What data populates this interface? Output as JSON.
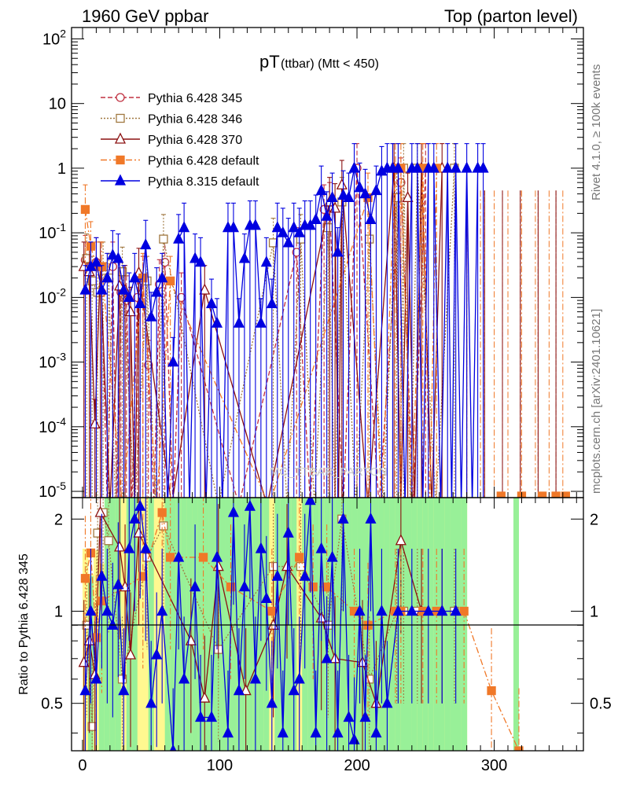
{
  "header": {
    "left": "1960 GeV ppbar",
    "right": "Top (parton level)"
  },
  "side": {
    "rivet": "Rivet 4.1.0, ≥ 100k events",
    "mcplots": "mcplots.cern.ch [arXiv:2401.10621]"
  },
  "watermark": "MC_TTBAR_PARTON",
  "colors": {
    "p345": "#c03040",
    "p346": "#a07840",
    "p370": "#8b1010",
    "pdef": "#f07828",
    "p8": "#0000e0",
    "band_green": "#98f098",
    "band_yellow": "#fff890"
  },
  "chart_data": {
    "type": "line",
    "title": "pT",
    "title_sub": "(ttbar) (Mtt < 450)",
    "xlim": [
      -8,
      365
    ],
    "ylim": [
      8e-06,
      150
    ],
    "yscale": "log",
    "x_ticks": [
      0,
      100,
      200,
      300
    ],
    "y_tick_labels": [
      "10^-5",
      "10^-4",
      "10^-3",
      "10^-2",
      "10^-1",
      "1",
      "10",
      "10^2"
    ],
    "ratio": {
      "ylabel": "Ratio to Pythia 6.428 345",
      "ylim": [
        0.35,
        2.35
      ],
      "y_ticks_left": [
        "0.5",
        "1",
        "2"
      ],
      "y_ticks_right": [
        "0.5",
        "1",
        "2"
      ]
    },
    "legend_position": "top-left",
    "series": [
      {
        "key": "p345",
        "name": "Pythia 6.428 345",
        "marker": "circle-open",
        "dash": "dashed",
        "points": [
          [
            2,
            0.038
          ],
          [
            6,
            0.03
          ],
          [
            10,
            0.035
          ],
          [
            14,
            0.012
          ],
          [
            22,
            0.03
          ],
          [
            28,
            0.012
          ],
          [
            32,
            0.009
          ],
          [
            40,
            0.01
          ],
          [
            44,
            0.018
          ],
          [
            48,
            0.0009
          ],
          [
            56,
            0.016
          ],
          [
            60,
            0.035
          ],
          [
            72,
            0.01
          ],
          [
            156,
            0.05
          ],
          [
            176,
            0.23
          ],
          [
            180,
            0.25
          ],
          [
            200,
            1.0
          ],
          [
            232,
            0.6
          ],
          [
            250,
            1.0
          ]
        ]
      },
      {
        "key": "p346",
        "name": "Pythia 6.428 346",
        "marker": "square-open",
        "dash": "dotted",
        "points": [
          [
            3,
            0.04
          ],
          [
            7,
            0.018
          ],
          [
            11,
            0.012
          ],
          [
            15,
            0.03
          ],
          [
            19,
            0.02
          ],
          [
            29,
            0.025
          ],
          [
            47,
            0.018
          ],
          [
            59,
            0.08
          ],
          [
            139,
            0.07
          ],
          [
            159,
            0.08
          ],
          [
            179,
            0.12
          ],
          [
            189,
            0.3
          ],
          [
            209,
            0.08
          ],
          [
            229,
            0.35
          ],
          [
            234,
            1.0
          ],
          [
            244,
            1.0
          ],
          [
            271,
            1.0
          ]
        ]
      },
      {
        "key": "p370",
        "name": "Pythia 6.428 370",
        "marker": "triangle-open",
        "dash": "solid",
        "points": [
          [
            1,
            0.03
          ],
          [
            5,
            0.025
          ],
          [
            9,
            0.00011
          ],
          [
            13,
            0.03
          ],
          [
            27,
            0.015
          ],
          [
            31,
            0.013
          ],
          [
            35,
            0.006
          ],
          [
            41,
            0.024
          ],
          [
            89,
            0.013
          ],
          [
            180,
            0.3
          ],
          [
            184,
            0.24
          ],
          [
            189,
            0.55
          ],
          [
            227,
            1.0
          ],
          [
            237,
            0.35
          ],
          [
            247,
            1.0
          ],
          [
            262,
            1.0
          ]
        ]
      },
      {
        "key": "pdef",
        "name": "Pythia 6.428 default",
        "marker": "square-filled",
        "dash": "dashdot",
        "points": [
          [
            2,
            0.23
          ],
          [
            6,
            0.062
          ],
          [
            10,
            0.03
          ],
          [
            14,
            0.03
          ],
          [
            44,
            0.02
          ],
          [
            64,
            0.018
          ],
          [
            208,
            0.35
          ],
          [
            228,
            1.0
          ],
          [
            232,
            1.0
          ],
          [
            248,
            1.0
          ],
          [
            258,
            1.0
          ]
        ]
      },
      {
        "key": "p8",
        "name": "Pythia 8.315 default",
        "marker": "triangle-filled",
        "dash": "solid",
        "points": [
          [
            2,
            0.013
          ],
          [
            6,
            0.03
          ],
          [
            10,
            0.035
          ],
          [
            14,
            0.013
          ],
          [
            18,
            0.02
          ],
          [
            22,
            0.045
          ],
          [
            26,
            0.04
          ],
          [
            30,
            0.013
          ],
          [
            34,
            0.01
          ],
          [
            38,
            0.02
          ],
          [
            42,
            0.008
          ],
          [
            46,
            0.065
          ],
          [
            50,
            0.005
          ],
          [
            54,
            0.012
          ],
          [
            58,
            0.02
          ],
          [
            66,
            0.001
          ],
          [
            70,
            0.08
          ],
          [
            74,
            0.12
          ],
          [
            82,
            0.04
          ],
          [
            86,
            0.035
          ],
          [
            94,
            0.008
          ],
          [
            98,
            0.004
          ],
          [
            106,
            0.12
          ],
          [
            110,
            0.12
          ],
          [
            114,
            0.004
          ],
          [
            118,
            0.04
          ],
          [
            122,
            0.13
          ],
          [
            126,
            0.13
          ],
          [
            130,
            0.004
          ],
          [
            134,
            0.035
          ],
          [
            138,
            0.008
          ],
          [
            142,
            0.12
          ],
          [
            146,
            0.1
          ],
          [
            150,
            0.07
          ],
          [
            154,
            0.12
          ],
          [
            158,
            0.1
          ],
          [
            162,
            0.13
          ],
          [
            166,
            0.13
          ],
          [
            170,
            0.16
          ],
          [
            174,
            0.45
          ],
          [
            178,
            0.18
          ],
          [
            182,
            0.35
          ],
          [
            186,
            0.05
          ],
          [
            190,
            0.38
          ],
          [
            194,
            0.35
          ],
          [
            198,
            1.0
          ],
          [
            202,
            0.5
          ],
          [
            206,
            0.4
          ],
          [
            210,
            0.16
          ],
          [
            214,
            0.45
          ],
          [
            218,
            0.9
          ],
          [
            222,
            1.0
          ],
          [
            226,
            1.0
          ],
          [
            230,
            1.0
          ],
          [
            240,
            1.0
          ],
          [
            244,
            1.0
          ],
          [
            252,
            1.0
          ],
          [
            256,
            1.0
          ],
          [
            266,
            1.0
          ],
          [
            272,
            1.0
          ],
          [
            280,
            1.0
          ],
          [
            288,
            1.0
          ],
          [
            292,
            1.0
          ]
        ]
      }
    ],
    "ratio_series": {
      "p346": [
        [
          3,
          0.9
        ],
        [
          7,
          0.42
        ],
        [
          11,
          1.8
        ],
        [
          15,
          2.1
        ],
        [
          19,
          1.7
        ],
        [
          29,
          0.6
        ],
        [
          47,
          1.5
        ],
        [
          59,
          1.9
        ],
        [
          99,
          0.75
        ],
        [
          139,
          1.4
        ],
        [
          159,
          1.4
        ],
        [
          179,
          0.9
        ],
        [
          189,
          2.0
        ],
        [
          209,
          0.6
        ],
        [
          229,
          1.0
        ],
        [
          234,
          1.0
        ],
        [
          244,
          1.0
        ],
        [
          271,
          1.0
        ]
      ],
      "p370": [
        [
          1,
          0.68
        ],
        [
          5,
          0.8
        ],
        [
          9,
          0.62
        ],
        [
          13,
          2.1
        ],
        [
          27,
          1.62
        ],
        [
          31,
          1.2
        ],
        [
          35,
          0.72
        ],
        [
          41,
          1.8
        ],
        [
          79,
          0.8
        ],
        [
          89,
          0.52
        ],
        [
          99,
          1.4
        ],
        [
          119,
          0.55
        ],
        [
          139,
          0.9
        ],
        [
          149,
          1.4
        ],
        [
          174,
          0.95
        ],
        [
          184,
          0.7
        ],
        [
          204,
          0.68
        ],
        [
          214,
          0.5
        ],
        [
          232,
          1.7
        ],
        [
          247,
          1.0
        ],
        [
          262,
          1.0
        ]
      ],
      "pdef": [
        [
          2,
          1.28
        ],
        [
          6,
          1.55
        ],
        [
          10,
          0.82
        ],
        [
          14,
          1.08
        ],
        [
          44,
          1.3
        ],
        [
          58,
          2.1
        ],
        [
          64,
          1.5
        ],
        [
          88,
          1.5
        ],
        [
          108,
          1.2
        ],
        [
          138,
          1.0
        ],
        [
          158,
          1.5
        ],
        [
          168,
          1.2
        ],
        [
          178,
          1.2
        ],
        [
          198,
          1.0
        ],
        [
          208,
          0.9
        ],
        [
          228,
          1.0
        ],
        [
          232,
          1.0
        ],
        [
          248,
          1.0
        ],
        [
          258,
          1.0
        ],
        [
          278,
          1.0
        ],
        [
          298,
          0.55
        ],
        [
          318,
          0.35
        ]
      ],
      "p8": [
        [
          2,
          0.55
        ],
        [
          6,
          1.0
        ],
        [
          10,
          0.6
        ],
        [
          14,
          1.3
        ],
        [
          18,
          1.0
        ],
        [
          22,
          0.9
        ],
        [
          26,
          1.22
        ],
        [
          30,
          0.55
        ],
        [
          34,
          1.6
        ],
        [
          38,
          2.0
        ],
        [
          42,
          2.2
        ],
        [
          46,
          1.6
        ],
        [
          50,
          0.5
        ],
        [
          54,
          0.72
        ],
        [
          58,
          1.0
        ],
        [
          66,
          0.35
        ],
        [
          70,
          1.5
        ],
        [
          74,
          0.6
        ],
        [
          82,
          1.2
        ],
        [
          86,
          0.45
        ],
        [
          94,
          0.45
        ],
        [
          98,
          1.5
        ],
        [
          106,
          0.4
        ],
        [
          110,
          2.1
        ],
        [
          114,
          0.55
        ],
        [
          118,
          1.2
        ],
        [
          122,
          2.2
        ],
        [
          126,
          0.6
        ],
        [
          130,
          1.6
        ],
        [
          134,
          1.1
        ],
        [
          138,
          0.5
        ],
        [
          142,
          1.3
        ],
        [
          146,
          0.4
        ],
        [
          150,
          1.8
        ],
        [
          154,
          0.55
        ],
        [
          158,
          0.6
        ],
        [
          162,
          1.3
        ],
        [
          166,
          2.3
        ],
        [
          170,
          0.4
        ],
        [
          174,
          1.6
        ],
        [
          178,
          0.7
        ],
        [
          182,
          1.5
        ],
        [
          186,
          0.4
        ],
        [
          190,
          2.0
        ],
        [
          194,
          0.45
        ],
        [
          198,
          0.38
        ],
        [
          202,
          1.0
        ],
        [
          206,
          0.45
        ],
        [
          210,
          2.0
        ],
        [
          214,
          0.4
        ],
        [
          218,
          1.0
        ],
        [
          222,
          0.5
        ],
        [
          230,
          1.0
        ],
        [
          240,
          1.0
        ],
        [
          252,
          1.0
        ],
        [
          262,
          1.0
        ],
        [
          272,
          1.0
        ]
      ]
    }
  }
}
